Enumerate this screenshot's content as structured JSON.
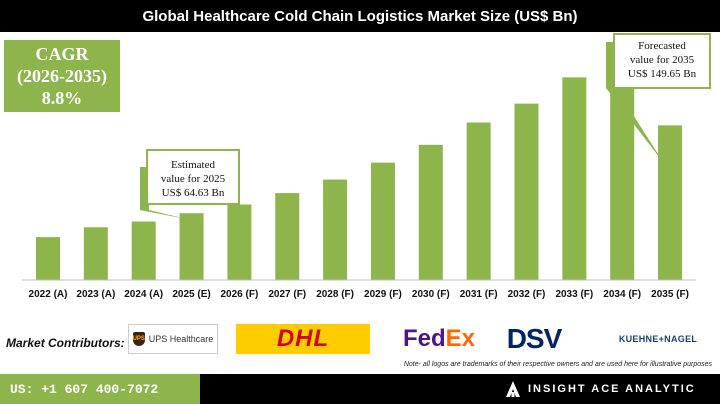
{
  "title": "Global Healthcare Cold Chain Logistics Market Size (US$ Bn)",
  "cagr": {
    "line1": "CAGR",
    "line2": "(2026-2035)",
    "line3": "8.8%"
  },
  "callouts": {
    "estimated": [
      "Estimated",
      "value for 2025",
      "US$ 64.63 Bn"
    ],
    "forecasted": [
      "Forecasted",
      "value for 2035",
      "US$ 149.65 Bn"
    ]
  },
  "chart_data": {
    "type": "bar",
    "categories": [
      "2022 (A)",
      "2023 (A)",
      "2024 (A)",
      "2025 (E)",
      "2026 (F)",
      "2027 (F)",
      "2028 (F)",
      "2029 (F)",
      "2030 (F)",
      "2031 (F)",
      "2032 (F)",
      "2033 (F)",
      "2034 (F)",
      "2035 (F)"
    ],
    "values": [
      41.5,
      51.0,
      56.6,
      64.63,
      73.1,
      84.1,
      97.2,
      113.6,
      130.8,
      152.4,
      170.7,
      196.1,
      221.4,
      149.65
    ],
    "ylim": [
      0,
      240
    ],
    "title": "Global Healthcare Cold Chain Logistics Market Size (US$ Bn)",
    "bar_color": "#8db54b"
  },
  "contributors": {
    "label": "Market Contributors:",
    "ups": "UPS Healthcare",
    "ups_mark": "UPS",
    "dhl": "DHL",
    "fedex_fed": "Fed",
    "fedex_ex": "Ex",
    "dsv": "DSV",
    "kn": "KUEHNE+NAGEL"
  },
  "note": "Note- all logos are trademarks of their respective owners and are used here for illustrative purposes",
  "footer": {
    "phone": "US: +1 607 400-7072",
    "brand": "INSIGHT ACE ANALYTIC"
  }
}
